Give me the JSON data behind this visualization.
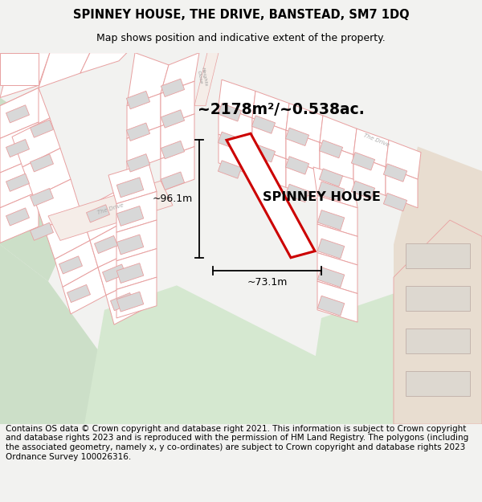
{
  "title": "SPINNEY HOUSE, THE DRIVE, BANSTEAD, SM7 1DQ",
  "subtitle": "Map shows position and indicative extent of the property.",
  "footer_lines": [
    "Contains OS data © Crown copyright and database right 2021. This information is subject to Crown copyright and database rights 2023 and is reproduced with the permission of",
    "HM Land Registry. The polygons (including the associated geometry, namely x, y co-ordinates) are subject to Crown copyright and database rights 2023 Ordnance Survey",
    "100026316."
  ],
  "area_label": "~2178m²/~0.538ac.",
  "property_label": "SPINNEY HOUSE",
  "width_label": "~73.1m",
  "height_label": "~96.1m",
  "bg_color": "#f2f2f0",
  "map_bg": "#ffffff",
  "green1": "#ccdfc8",
  "green2": "#d5e8d0",
  "tan": "#e8ddd0",
  "plot_color": "#cc0000",
  "parcel_line": "#e8a0a0",
  "road_fill": "#f5ede8",
  "building_fill": "#d8d8d8",
  "building_edge": "#e0a0a0"
}
